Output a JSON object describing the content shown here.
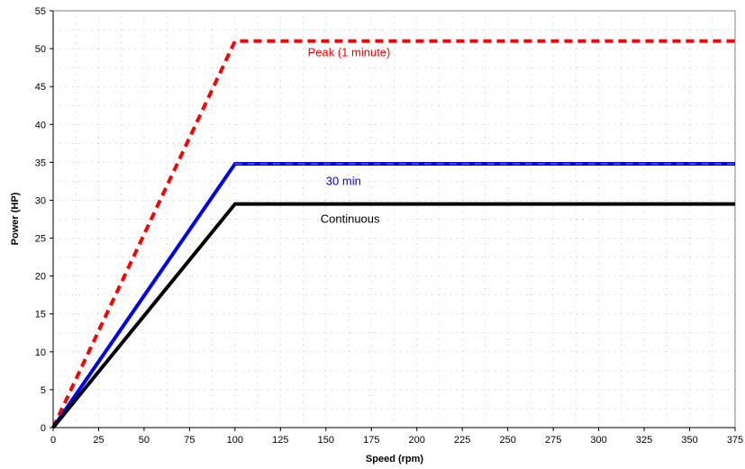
{
  "chart_data": {
    "type": "line",
    "xlabel": "Speed (rpm)",
    "ylabel": "Power (HP)",
    "xlim": [
      0,
      375
    ],
    "ylim": [
      0,
      55
    ],
    "xticks": [
      "0",
      "25",
      "50",
      "75",
      "100",
      "125",
      "150",
      "175",
      "200",
      "225",
      "250",
      "275",
      "300",
      "325",
      "350",
      "375"
    ],
    "yticks": [
      "0",
      "5",
      "10",
      "15",
      "20",
      "25",
      "30",
      "35",
      "40",
      "45",
      "50",
      "55"
    ],
    "grid": "dotted",
    "series": [
      {
        "name": "Peak (1 minute)",
        "color": "#ff0000",
        "style": "dashed",
        "x": [
          0,
          100,
          375
        ],
        "y": [
          0,
          51,
          51
        ],
        "label_at": [
          140,
          49
        ]
      },
      {
        "name": "30 min",
        "color": "#0000ff",
        "style": "solid",
        "x": [
          0,
          100,
          375
        ],
        "y": [
          0,
          34.8,
          34.8
        ],
        "label_at": [
          150,
          32
        ]
      },
      {
        "name": "Continuous",
        "color": "#000000",
        "style": "solid",
        "x": [
          0,
          100,
          375
        ],
        "y": [
          0,
          29.5,
          29.5
        ],
        "label_at": [
          147,
          27
        ]
      }
    ]
  }
}
